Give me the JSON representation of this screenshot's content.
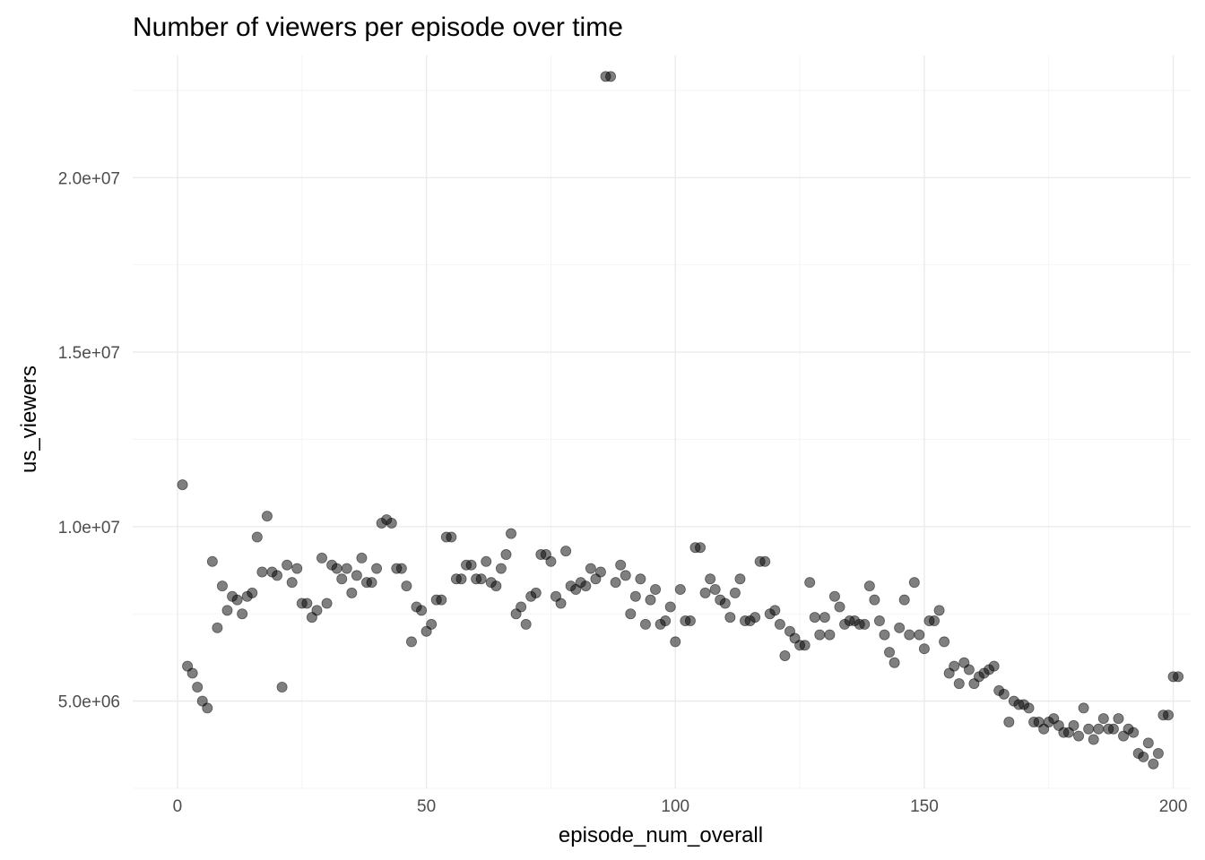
{
  "chart_data": {
    "type": "scatter",
    "title": "Number of viewers per episode over time",
    "xlabel": "episode_num_overall",
    "ylabel": "us_viewers",
    "xlim": [
      -9,
      203.5
    ],
    "ylim": [
      2500000,
      23500000
    ],
    "x_ticks": [
      0,
      50,
      100,
      150,
      200
    ],
    "x_tick_labels": [
      "0",
      "50",
      "100",
      "150",
      "200"
    ],
    "y_ticks": [
      5000000,
      10000000,
      15000000,
      20000000
    ],
    "y_tick_labels": [
      "5.0e+06",
      "1.0e+07",
      "1.5e+07",
      "2.0e+07"
    ],
    "grid": true,
    "legend": "none",
    "point_color": "#000000",
    "point_alpha": 0.5,
    "points": [
      [
        1,
        11200000
      ],
      [
        2,
        6000000
      ],
      [
        3,
        5800000
      ],
      [
        4,
        5400000
      ],
      [
        5,
        5000000
      ],
      [
        6,
        4800000
      ],
      [
        7,
        9000000
      ],
      [
        8,
        7100000
      ],
      [
        9,
        8300000
      ],
      [
        10,
        7600000
      ],
      [
        11,
        8000000
      ],
      [
        12,
        7900000
      ],
      [
        13,
        7500000
      ],
      [
        14,
        8000000
      ],
      [
        15,
        8100000
      ],
      [
        16,
        9700000
      ],
      [
        17,
        8700000
      ],
      [
        18,
        10300000
      ],
      [
        19,
        8700000
      ],
      [
        20,
        8600000
      ],
      [
        21,
        5400000
      ],
      [
        22,
        8900000
      ],
      [
        23,
        8400000
      ],
      [
        24,
        8800000
      ],
      [
        25,
        7800000
      ],
      [
        26,
        7800000
      ],
      [
        27,
        7400000
      ],
      [
        28,
        7600000
      ],
      [
        29,
        9100000
      ],
      [
        30,
        7800000
      ],
      [
        31,
        8900000
      ],
      [
        32,
        8800000
      ],
      [
        33,
        8500000
      ],
      [
        34,
        8800000
      ],
      [
        35,
        8100000
      ],
      [
        36,
        8600000
      ],
      [
        37,
        9100000
      ],
      [
        38,
        8400000
      ],
      [
        39,
        8400000
      ],
      [
        40,
        8800000
      ],
      [
        41,
        10100000
      ],
      [
        42,
        10200000
      ],
      [
        43,
        10100000
      ],
      [
        44,
        8800000
      ],
      [
        45,
        8800000
      ],
      [
        46,
        8300000
      ],
      [
        47,
        6700000
      ],
      [
        48,
        7700000
      ],
      [
        49,
        7600000
      ],
      [
        50,
        7000000
      ],
      [
        51,
        7200000
      ],
      [
        52,
        7900000
      ],
      [
        53,
        7900000
      ],
      [
        54,
        9700000
      ],
      [
        55,
        9700000
      ],
      [
        56,
        8500000
      ],
      [
        57,
        8500000
      ],
      [
        58,
        8900000
      ],
      [
        59,
        8900000
      ],
      [
        60,
        8500000
      ],
      [
        61,
        8500000
      ],
      [
        62,
        9000000
      ],
      [
        63,
        8400000
      ],
      [
        64,
        8300000
      ],
      [
        65,
        8800000
      ],
      [
        66,
        9200000
      ],
      [
        67,
        9800000
      ],
      [
        68,
        7500000
      ],
      [
        69,
        7700000
      ],
      [
        70,
        7200000
      ],
      [
        71,
        8000000
      ],
      [
        72,
        8100000
      ],
      [
        73,
        9200000
      ],
      [
        74,
        9200000
      ],
      [
        75,
        9000000
      ],
      [
        76,
        8000000
      ],
      [
        77,
        7800000
      ],
      [
        78,
        9300000
      ],
      [
        79,
        8300000
      ],
      [
        80,
        8200000
      ],
      [
        81,
        8400000
      ],
      [
        82,
        8300000
      ],
      [
        83,
        8800000
      ],
      [
        84,
        8500000
      ],
      [
        85,
        8700000
      ],
      [
        86,
        22900000
      ],
      [
        87,
        22900000
      ],
      [
        88,
        8400000
      ],
      [
        89,
        8900000
      ],
      [
        90,
        8600000
      ],
      [
        91,
        7500000
      ],
      [
        92,
        8000000
      ],
      [
        93,
        8500000
      ],
      [
        94,
        7200000
      ],
      [
        95,
        7900000
      ],
      [
        96,
        8200000
      ],
      [
        97,
        7200000
      ],
      [
        98,
        7300000
      ],
      [
        99,
        7700000
      ],
      [
        100,
        6700000
      ],
      [
        101,
        8200000
      ],
      [
        102,
        7300000
      ],
      [
        103,
        7300000
      ],
      [
        104,
        9400000
      ],
      [
        105,
        9400000
      ],
      [
        106,
        8100000
      ],
      [
        107,
        8500000
      ],
      [
        108,
        8200000
      ],
      [
        109,
        7900000
      ],
      [
        110,
        7800000
      ],
      [
        111,
        7400000
      ],
      [
        112,
        8100000
      ],
      [
        113,
        8500000
      ],
      [
        114,
        7300000
      ],
      [
        115,
        7300000
      ],
      [
        116,
        7400000
      ],
      [
        117,
        9000000
      ],
      [
        118,
        9000000
      ],
      [
        119,
        7500000
      ],
      [
        120,
        7600000
      ],
      [
        121,
        7200000
      ],
      [
        122,
        6300000
      ],
      [
        123,
        7000000
      ],
      [
        124,
        6800000
      ],
      [
        125,
        6600000
      ],
      [
        126,
        6600000
      ],
      [
        127,
        8400000
      ],
      [
        128,
        7400000
      ],
      [
        129,
        6900000
      ],
      [
        130,
        7400000
      ],
      [
        131,
        6900000
      ],
      [
        132,
        8000000
      ],
      [
        133,
        7700000
      ],
      [
        134,
        7200000
      ],
      [
        135,
        7300000
      ],
      [
        136,
        7300000
      ],
      [
        137,
        7200000
      ],
      [
        138,
        7200000
      ],
      [
        139,
        8300000
      ],
      [
        140,
        7900000
      ],
      [
        141,
        7300000
      ],
      [
        142,
        6900000
      ],
      [
        143,
        6400000
      ],
      [
        144,
        6100000
      ],
      [
        145,
        7100000
      ],
      [
        146,
        7900000
      ],
      [
        147,
        6900000
      ],
      [
        148,
        8400000
      ],
      [
        149,
        6900000
      ],
      [
        150,
        6500000
      ],
      [
        151,
        7300000
      ],
      [
        152,
        7300000
      ],
      [
        153,
        7600000
      ],
      [
        154,
        6700000
      ],
      [
        155,
        5800000
      ],
      [
        156,
        6000000
      ],
      [
        157,
        5500000
      ],
      [
        158,
        6100000
      ],
      [
        159,
        5900000
      ],
      [
        160,
        5500000
      ],
      [
        161,
        5700000
      ],
      [
        162,
        5800000
      ],
      [
        163,
        5900000
      ],
      [
        164,
        6000000
      ],
      [
        165,
        5300000
      ],
      [
        166,
        5200000
      ],
      [
        167,
        4400000
      ],
      [
        168,
        5000000
      ],
      [
        169,
        4900000
      ],
      [
        170,
        4900000
      ],
      [
        171,
        4800000
      ],
      [
        172,
        4400000
      ],
      [
        173,
        4400000
      ],
      [
        174,
        4200000
      ],
      [
        175,
        4400000
      ],
      [
        176,
        4500000
      ],
      [
        177,
        4300000
      ],
      [
        178,
        4100000
      ],
      [
        179,
        4100000
      ],
      [
        180,
        4300000
      ],
      [
        181,
        4000000
      ],
      [
        182,
        4800000
      ],
      [
        183,
        4200000
      ],
      [
        184,
        3900000
      ],
      [
        185,
        4200000
      ],
      [
        186,
        4500000
      ],
      [
        187,
        4200000
      ],
      [
        188,
        4200000
      ],
      [
        189,
        4500000
      ],
      [
        190,
        4000000
      ],
      [
        191,
        4200000
      ],
      [
        192,
        4100000
      ],
      [
        193,
        3500000
      ],
      [
        194,
        3400000
      ],
      [
        195,
        3800000
      ],
      [
        196,
        3200000
      ],
      [
        197,
        3500000
      ],
      [
        198,
        4600000
      ],
      [
        199,
        4600000
      ],
      [
        200,
        5700000
      ],
      [
        201,
        5700000
      ]
    ]
  }
}
